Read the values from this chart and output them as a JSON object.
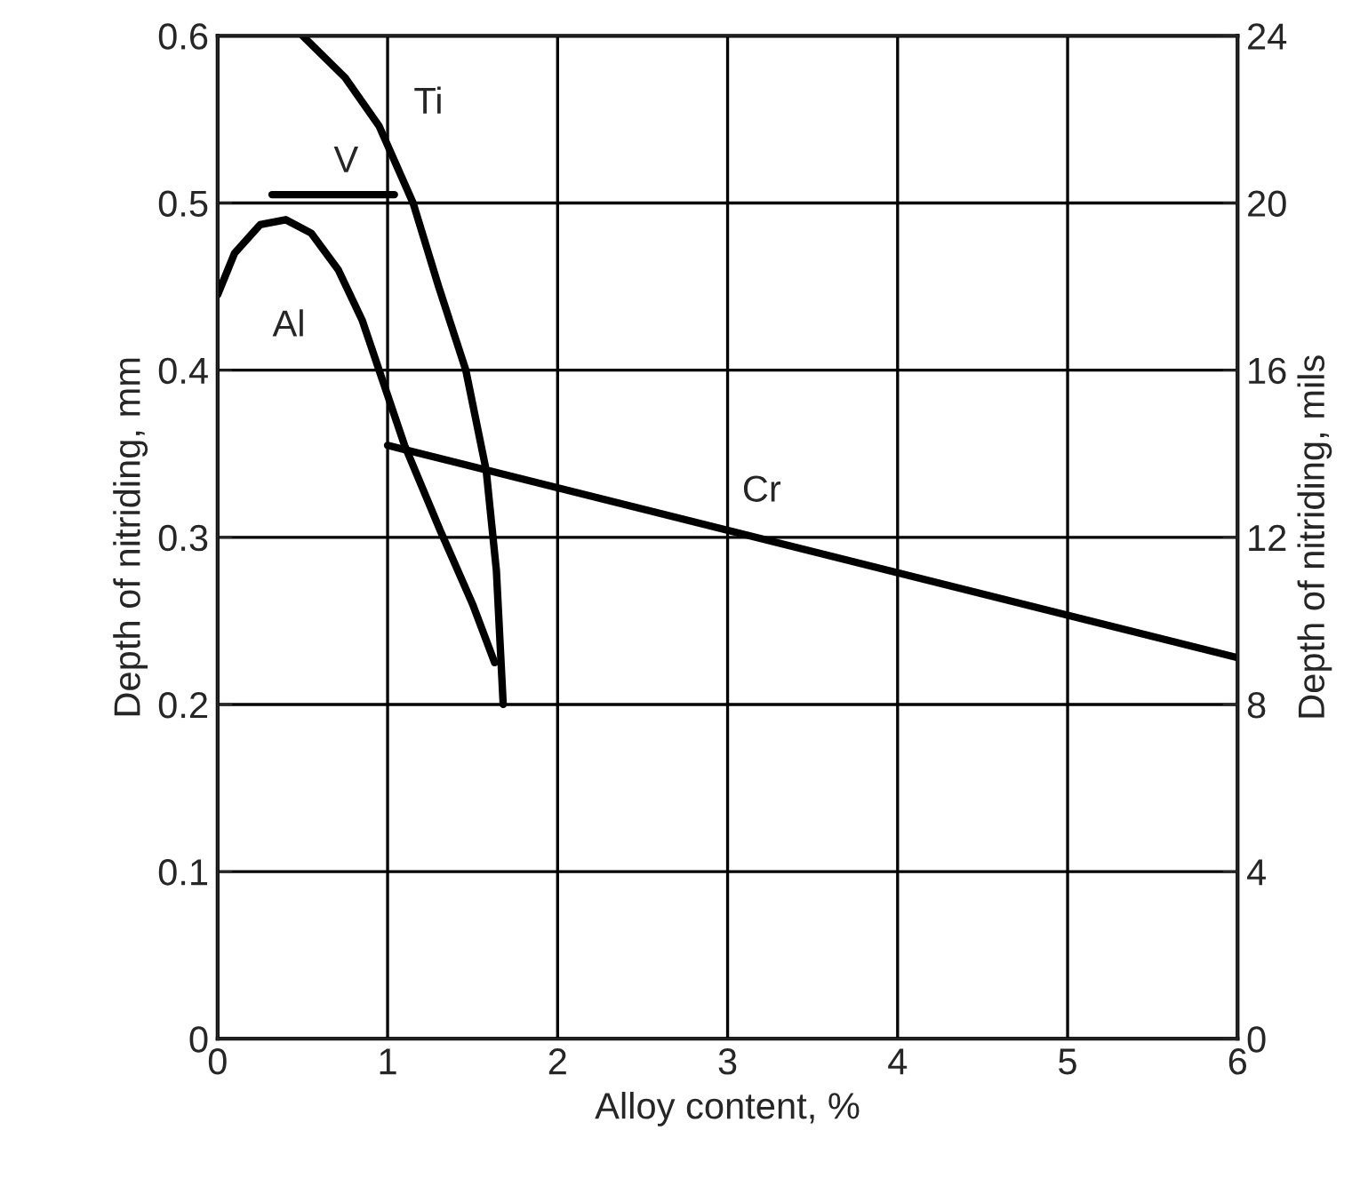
{
  "chart_data": {
    "type": "line",
    "xlabel": "Alloy content, %",
    "ylabel": "Depth of nitriding, mm",
    "y2label": "Depth of nitriding, mils",
    "xlim": [
      0,
      6
    ],
    "xticks": [
      0,
      1,
      2,
      3,
      4,
      5,
      6
    ],
    "ylim": [
      0,
      0.6
    ],
    "yticks": [
      0,
      0.1,
      0.2,
      0.3,
      0.4,
      0.5,
      0.6
    ],
    "y2lim": [
      0,
      24
    ],
    "y2ticks": [
      0,
      4,
      8,
      12,
      16,
      20,
      24
    ],
    "grid": true,
    "legend": false,
    "line_style": "solid",
    "marker": "none",
    "series": [
      {
        "name": "V",
        "color": "#000000",
        "x": [
          0.32,
          1.04
        ],
        "values": [
          0.505,
          0.505
        ]
      },
      {
        "name": "Ti",
        "color": "#000000",
        "x": [
          0.5,
          0.75,
          0.95,
          1.15,
          1.3,
          1.46,
          1.58,
          1.64,
          1.68
        ],
        "values": [
          0.6,
          0.575,
          0.546,
          0.5,
          0.45,
          0.4,
          0.34,
          0.28,
          0.2
        ]
      },
      {
        "name": "Al",
        "color": "#000000",
        "x": [
          0,
          0.1,
          0.25,
          0.4,
          0.55,
          0.71,
          0.85,
          0.95,
          1.1,
          1.31,
          1.5,
          1.63
        ],
        "values": [
          0.445,
          0.47,
          0.487,
          0.49,
          0.482,
          0.46,
          0.43,
          0.4,
          0.355,
          0.304,
          0.26,
          0.225
        ]
      },
      {
        "name": "Cr",
        "color": "#000000",
        "x": [
          1,
          6
        ],
        "values": [
          0.355,
          0.228
        ]
      }
    ]
  }
}
